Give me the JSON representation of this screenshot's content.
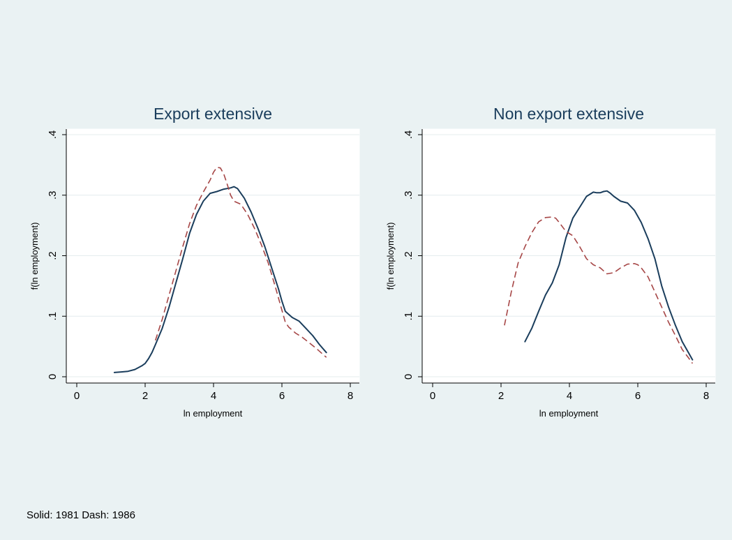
{
  "note": "Solid: 1981 Dash: 1986",
  "chart_data": [
    {
      "type": "line",
      "title": "Export extensive",
      "xlabel": "ln employment",
      "ylabel": "f(ln employment)",
      "xlim": [
        0,
        8
      ],
      "ylim": [
        0,
        0.4
      ],
      "xticks": [
        0,
        2,
        4,
        6,
        8
      ],
      "yticks": [
        0,
        0.1,
        0.2,
        0.3,
        0.4
      ],
      "xtick_labels": [
        "0",
        "2",
        "4",
        "6",
        "8"
      ],
      "ytick_labels": [
        "0",
        ".1",
        ".2",
        ".3",
        ".4"
      ],
      "grid": "horizontal",
      "series": [
        {
          "style": "solid",
          "color": "#1a3d5c",
          "x": [
            1.1,
            1.3,
            1.5,
            1.7,
            1.9,
            2.0,
            2.1,
            2.2,
            2.3,
            2.5,
            2.7,
            2.9,
            3.1,
            3.3,
            3.5,
            3.7,
            3.9,
            4.1,
            4.3,
            4.5,
            4.6,
            4.7,
            4.9,
            5.1,
            5.3,
            5.5,
            5.7,
            5.9,
            6.0,
            6.1,
            6.3,
            6.5,
            6.7,
            6.9,
            7.1,
            7.3
          ],
          "y": [
            0.007,
            0.008,
            0.009,
            0.012,
            0.018,
            0.022,
            0.03,
            0.04,
            0.053,
            0.08,
            0.115,
            0.155,
            0.195,
            0.237,
            0.268,
            0.29,
            0.303,
            0.306,
            0.31,
            0.312,
            0.314,
            0.311,
            0.295,
            0.272,
            0.245,
            0.215,
            0.18,
            0.145,
            0.125,
            0.108,
            0.098,
            0.092,
            0.08,
            0.068,
            0.053,
            0.04
          ]
        },
        {
          "style": "dash",
          "color": "#a64646",
          "x": [
            2.3,
            2.5,
            2.7,
            2.9,
            3.1,
            3.3,
            3.5,
            3.7,
            3.9,
            4.0,
            4.1,
            4.2,
            4.3,
            4.4,
            4.5,
            4.6,
            4.8,
            5.0,
            5.2,
            5.4,
            5.6,
            5.8,
            6.0,
            6.1,
            6.2,
            6.4,
            6.6,
            6.8,
            7.0,
            7.2,
            7.3
          ],
          "y": [
            0.06,
            0.095,
            0.135,
            0.175,
            0.215,
            0.253,
            0.283,
            0.305,
            0.325,
            0.338,
            0.346,
            0.345,
            0.335,
            0.318,
            0.3,
            0.29,
            0.285,
            0.268,
            0.245,
            0.218,
            0.188,
            0.15,
            0.11,
            0.09,
            0.082,
            0.072,
            0.065,
            0.056,
            0.047,
            0.037,
            0.032
          ]
        }
      ]
    },
    {
      "type": "line",
      "title": "Non export extensive",
      "xlabel": "ln employment",
      "ylabel": "f(ln employment)",
      "xlim": [
        0,
        8
      ],
      "ylim": [
        0,
        0.4
      ],
      "xticks": [
        0,
        2,
        4,
        6,
        8
      ],
      "yticks": [
        0,
        0.1,
        0.2,
        0.3,
        0.4
      ],
      "xtick_labels": [
        "0",
        "2",
        "4",
        "6",
        "8"
      ],
      "ytick_labels": [
        "0",
        ".1",
        ".2",
        ".3",
        ".4"
      ],
      "grid": "horizontal",
      "series": [
        {
          "style": "solid",
          "color": "#1a3d5c",
          "x": [
            2.7,
            2.9,
            3.1,
            3.3,
            3.5,
            3.7,
            3.9,
            4.1,
            4.3,
            4.5,
            4.7,
            4.8,
            4.9,
            5.0,
            5.1,
            5.2,
            5.3,
            5.5,
            5.7,
            5.9,
            6.1,
            6.3,
            6.5,
            6.7,
            6.9,
            7.1,
            7.3,
            7.5,
            7.6
          ],
          "y": [
            0.058,
            0.08,
            0.108,
            0.135,
            0.155,
            0.185,
            0.23,
            0.262,
            0.28,
            0.298,
            0.305,
            0.304,
            0.304,
            0.306,
            0.307,
            0.303,
            0.298,
            0.29,
            0.287,
            0.275,
            0.255,
            0.228,
            0.195,
            0.15,
            0.115,
            0.085,
            0.058,
            0.038,
            0.028
          ]
        },
        {
          "style": "dash",
          "color": "#a64646",
          "x": [
            2.1,
            2.3,
            2.5,
            2.7,
            2.9,
            3.1,
            3.3,
            3.5,
            3.6,
            3.7,
            3.9,
            4.1,
            4.3,
            4.5,
            4.7,
            4.9,
            5.1,
            5.3,
            5.5,
            5.7,
            5.9,
            6.0,
            6.1,
            6.3,
            6.5,
            6.7,
            6.9,
            7.1,
            7.3,
            7.5,
            7.6
          ],
          "y": [
            0.085,
            0.14,
            0.188,
            0.215,
            0.238,
            0.256,
            0.263,
            0.264,
            0.262,
            0.255,
            0.24,
            0.233,
            0.215,
            0.195,
            0.185,
            0.18,
            0.17,
            0.172,
            0.18,
            0.186,
            0.187,
            0.185,
            0.18,
            0.165,
            0.14,
            0.115,
            0.09,
            0.068,
            0.045,
            0.03,
            0.022
          ]
        }
      ]
    }
  ]
}
